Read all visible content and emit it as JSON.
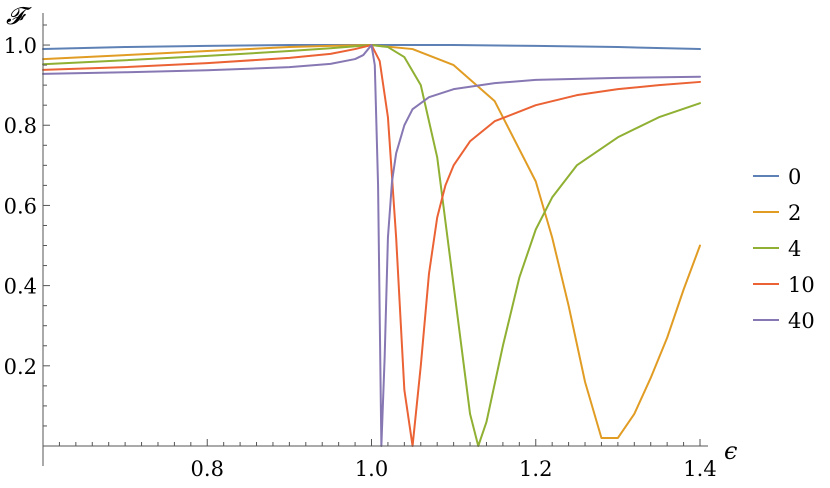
{
  "chart_data": {
    "type": "line",
    "ylabel": "𝓕",
    "xlabel": "ϵ",
    "xlim": [
      0.6,
      1.4
    ],
    "ylim": [
      0.0,
      1.05
    ],
    "x_axis_crosses_y_at": 0.0,
    "x_ticks": [
      0.8,
      1.0,
      1.2,
      1.4
    ],
    "x_tick_labels": [
      "0.8",
      "1.0",
      "1.2",
      "1.4"
    ],
    "y_ticks": [
      0.2,
      0.4,
      0.6,
      0.8,
      1.0
    ],
    "y_tick_labels": [
      "0.2",
      "0.4",
      "0.6",
      "0.8",
      "1.0"
    ],
    "grid": false,
    "legend_position": "right",
    "series": [
      {
        "name": "0",
        "color": "#5e81b5",
        "x": [
          0.6,
          0.7,
          0.8,
          0.9,
          1.0,
          1.1,
          1.2,
          1.3,
          1.4
        ],
        "y": [
          0.99,
          0.995,
          0.998,
          1.0,
          1.0,
          1.0,
          0.998,
          0.995,
          0.99
        ]
      },
      {
        "name": "2",
        "color": "#e19c24",
        "x": [
          0.6,
          0.7,
          0.8,
          0.9,
          0.95,
          1.0,
          1.05,
          1.1,
          1.15,
          1.2,
          1.22,
          1.24,
          1.26,
          1.28,
          1.3,
          1.32,
          1.34,
          1.36,
          1.38,
          1.4
        ],
        "y": [
          0.965,
          0.975,
          0.985,
          0.995,
          0.998,
          1.0,
          0.99,
          0.95,
          0.86,
          0.66,
          0.52,
          0.35,
          0.16,
          0.02,
          0.02,
          0.08,
          0.17,
          0.27,
          0.39,
          0.5
        ]
      },
      {
        "name": "4",
        "color": "#8fb032",
        "x": [
          0.6,
          0.7,
          0.8,
          0.9,
          0.95,
          1.0,
          1.02,
          1.04,
          1.06,
          1.08,
          1.1,
          1.12,
          1.13,
          1.14,
          1.16,
          1.18,
          1.2,
          1.22,
          1.25,
          1.3,
          1.35,
          1.4
        ],
        "y": [
          0.952,
          0.962,
          0.973,
          0.985,
          0.992,
          1.0,
          0.995,
          0.97,
          0.9,
          0.72,
          0.4,
          0.08,
          0.0,
          0.06,
          0.25,
          0.42,
          0.54,
          0.62,
          0.7,
          0.77,
          0.82,
          0.855
        ]
      },
      {
        "name": "10",
        "color": "#eb6235",
        "x": [
          0.6,
          0.7,
          0.8,
          0.9,
          0.95,
          0.98,
          1.0,
          1.01,
          1.02,
          1.03,
          1.04,
          1.05,
          1.06,
          1.07,
          1.08,
          1.09,
          1.1,
          1.12,
          1.15,
          1.2,
          1.25,
          1.3,
          1.35,
          1.4
        ],
        "y": [
          0.938,
          0.945,
          0.955,
          0.968,
          0.978,
          0.99,
          1.0,
          0.96,
          0.82,
          0.52,
          0.14,
          0.0,
          0.2,
          0.43,
          0.57,
          0.65,
          0.7,
          0.76,
          0.81,
          0.85,
          0.875,
          0.89,
          0.9,
          0.908
        ]
      },
      {
        "name": "40",
        "color": "#8778b3",
        "x": [
          0.6,
          0.7,
          0.8,
          0.9,
          0.95,
          0.98,
          0.99,
          1.0,
          1.004,
          1.008,
          1.012,
          1.016,
          1.02,
          1.025,
          1.03,
          1.04,
          1.05,
          1.07,
          1.1,
          1.15,
          1.2,
          1.3,
          1.4
        ],
        "y": [
          0.928,
          0.932,
          0.937,
          0.945,
          0.953,
          0.965,
          0.975,
          1.0,
          0.95,
          0.65,
          0.0,
          0.22,
          0.52,
          0.66,
          0.73,
          0.8,
          0.84,
          0.87,
          0.89,
          0.905,
          0.913,
          0.918,
          0.921
        ]
      }
    ]
  }
}
